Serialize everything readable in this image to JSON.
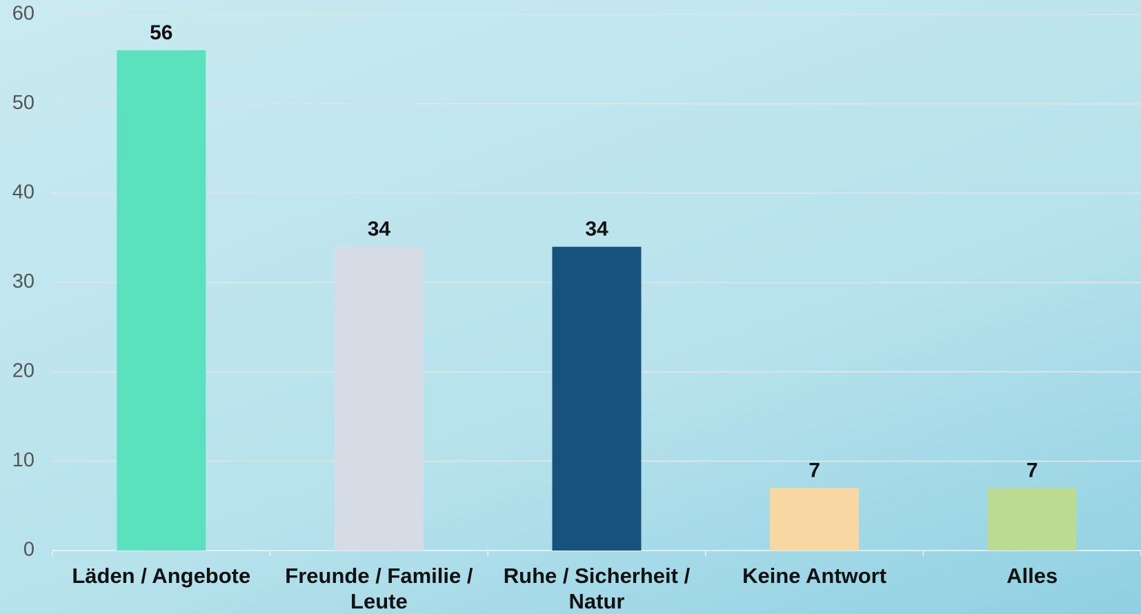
{
  "chart_data": {
    "type": "bar",
    "categories": [
      "Läden / Angebote",
      "Freunde / Familie / Leute",
      "Ruhe / Sicherheit / Natur",
      "Keine Antwort",
      "Alles"
    ],
    "values": [
      56,
      34,
      34,
      7,
      7
    ],
    "colors": [
      "#5ce1bf",
      "#d5dce6",
      "#17527d",
      "#f8d7a2",
      "#bcdb92"
    ],
    "ylim": [
      0,
      60
    ],
    "yticks": [
      0,
      10,
      20,
      30,
      40,
      50,
      60
    ],
    "grid": true
  }
}
